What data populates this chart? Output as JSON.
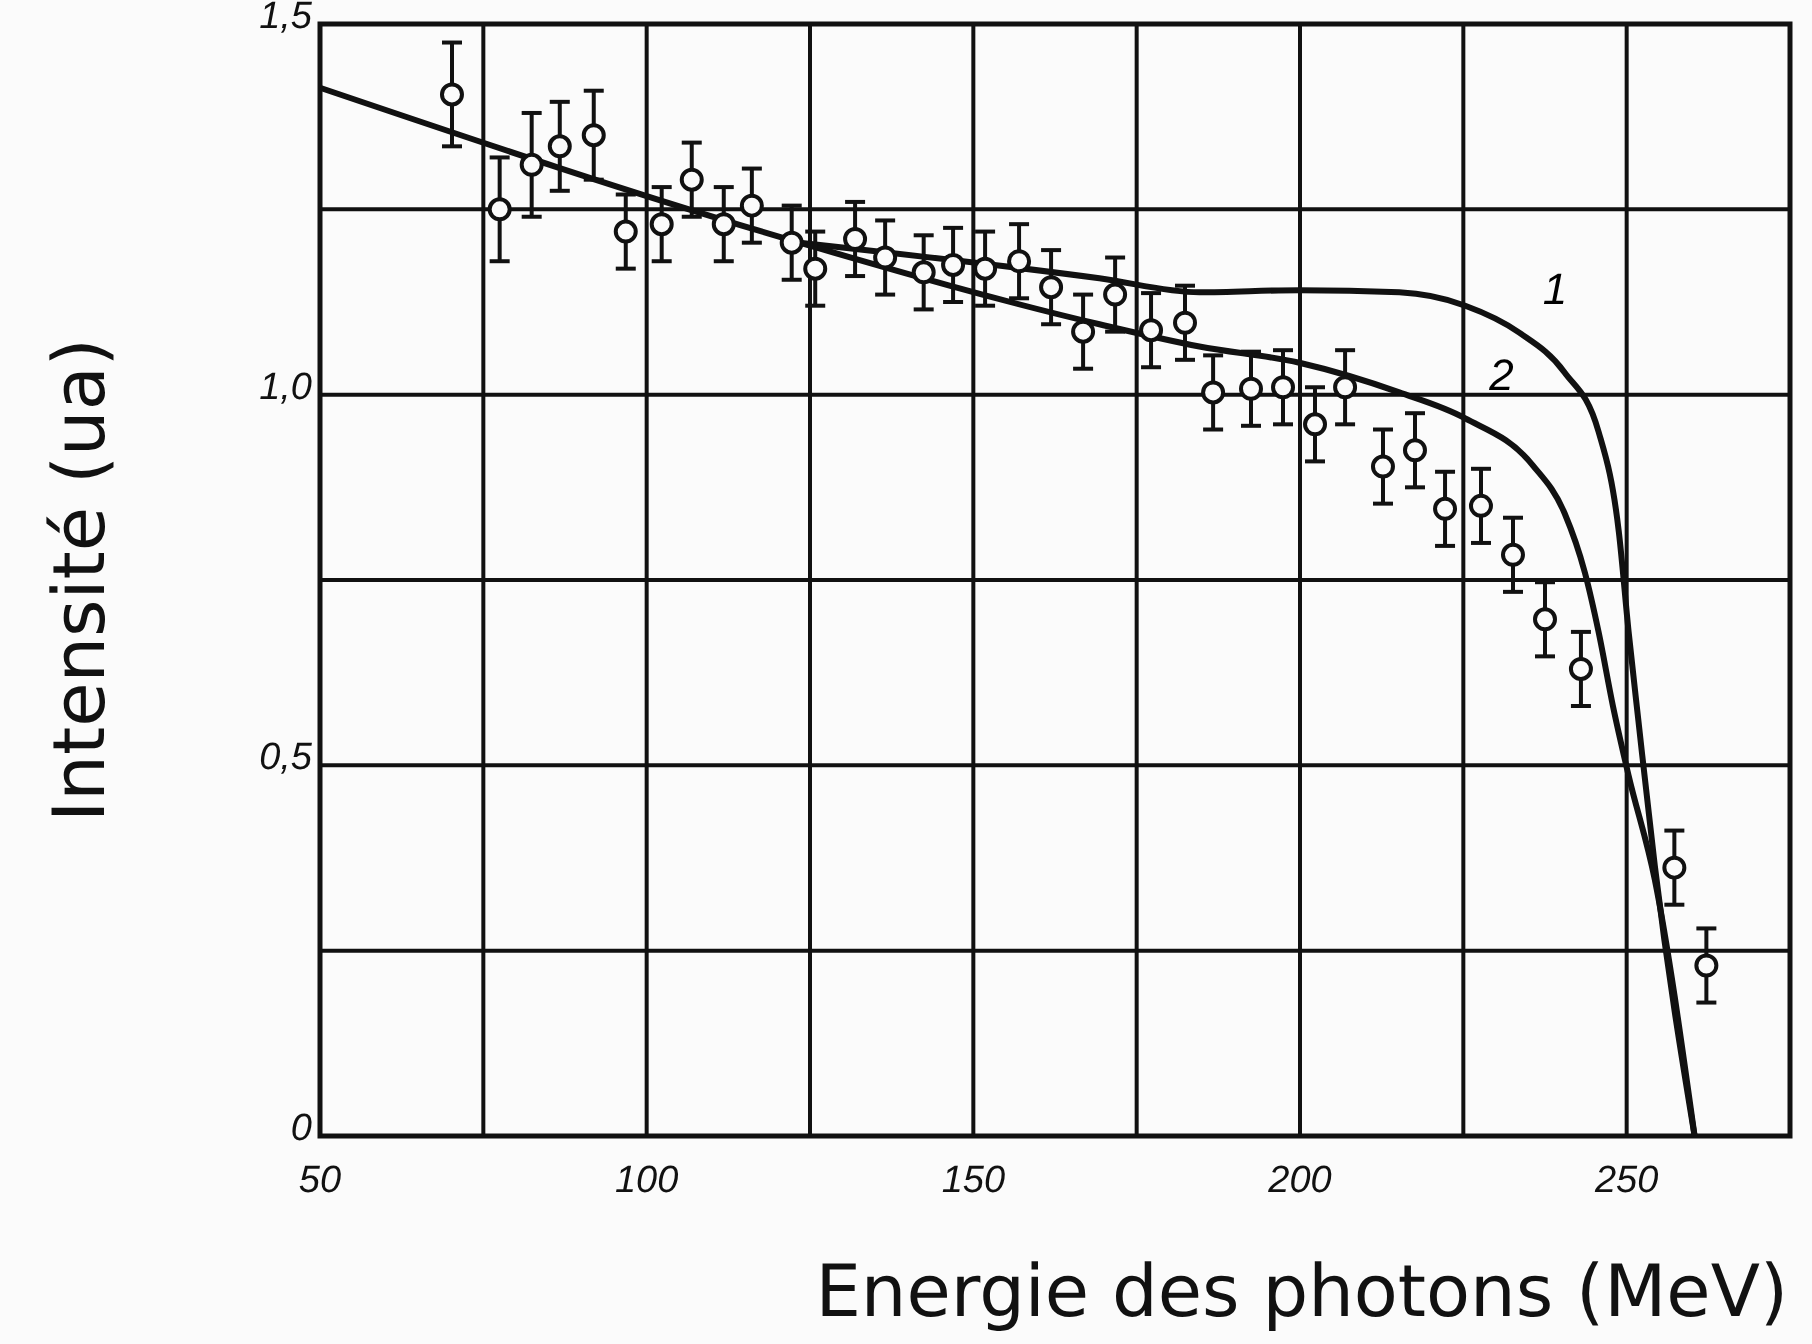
{
  "chart_data": {
    "type": "scatter",
    "xlabel": "Energie des photons (MeV)",
    "ylabel": "Intensité (ua)",
    "xlim": [
      50,
      275
    ],
    "ylim": [
      0,
      1.5
    ],
    "xticks": [
      50,
      {
        "value": 75,
        "label": null
      },
      100,
      {
        "value": 125,
        "label": null
      },
      150,
      {
        "value": 175,
        "label": null
      },
      200,
      {
        "value": 225,
        "label": null
      },
      250
    ],
    "yticks": [
      0,
      {
        "value": 0.25,
        "label": null
      },
      {
        "value": 0.5,
        "label": "0,5"
      },
      {
        "value": 0.75,
        "label": null
      },
      {
        "value": 1.0,
        "label": "1,0"
      },
      {
        "value": 1.25,
        "label": null
      },
      {
        "value": 1.5,
        "label": "1,5"
      }
    ],
    "grid": true,
    "series": [
      {
        "marker": "circle",
        "color": "#111111",
        "x": [
          70.2,
          77.5,
          82.4,
          86.7,
          91.9,
          96.8,
          102.3,
          106.9,
          111.8,
          116.1,
          122.2,
          125.8,
          131.9,
          136.5,
          142.4,
          146.9,
          151.8,
          157.0,
          161.9,
          166.8,
          171.7,
          177.2,
          182.4,
          186.7,
          192.5,
          197.4,
          202.3,
          206.9,
          212.7,
          217.6,
          222.2,
          227.7,
          232.6,
          237.5,
          243.0,
          257.3,
          262.2
        ],
        "values": [
          1.405,
          1.25,
          1.31,
          1.335,
          1.35,
          1.22,
          1.23,
          1.29,
          1.23,
          1.255,
          1.205,
          1.17,
          1.21,
          1.185,
          1.165,
          1.175,
          1.17,
          1.18,
          1.145,
          1.085,
          1.135,
          1.087,
          1.097,
          1.003,
          1.008,
          1.01,
          0.96,
          1.01,
          0.903,
          0.925,
          0.846,
          0.85,
          0.784,
          0.697,
          0.63,
          0.362,
          0.23
        ],
        "errors": [
          0.07,
          0.07,
          0.07,
          0.06,
          0.06,
          0.05,
          0.05,
          0.05,
          0.05,
          0.05,
          0.05,
          0.05,
          0.05,
          0.05,
          0.05,
          0.05,
          0.05,
          0.05,
          0.05,
          0.05,
          0.05,
          0.05,
          0.05,
          0.05,
          0.05,
          0.05,
          0.05,
          0.05,
          0.05,
          0.05,
          0.05,
          0.05,
          0.05,
          0.05,
          0.05,
          0.05,
          0.05
        ]
      },
      {
        "type": "line",
        "name": "1",
        "color": "#111111",
        "line_style": "solid",
        "x": [
          123.4,
          169.3,
          184.6,
          199.9,
          215.2,
          225.3,
          233.5,
          240.5,
          245.7,
          248.8,
          250.3,
          251.8,
          254.3,
          260.4
        ],
        "values": [
          1.205,
          1.157,
          1.138,
          1.141,
          1.138,
          1.12,
          1.084,
          1.03,
          0.95,
          0.815,
          0.68,
          0.56,
          0.365,
          0
        ]
      },
      {
        "type": "line",
        "name": "2",
        "color": "#111111",
        "line_style": "solid",
        "x": [
          50,
          123.4,
          169.3,
          184.6,
          199.9,
          215.2,
          225.3,
          235.6,
          240.5,
          243.6,
          245.7,
          247.9,
          250.3,
          254.3,
          260.4
        ],
        "values": [
          1.414,
          1.205,
          1.095,
          1.065,
          1.043,
          1.003,
          0.968,
          0.905,
          0.84,
          0.76,
          0.68,
          0.58,
          0.486,
          0.346,
          0
        ]
      }
    ]
  }
}
